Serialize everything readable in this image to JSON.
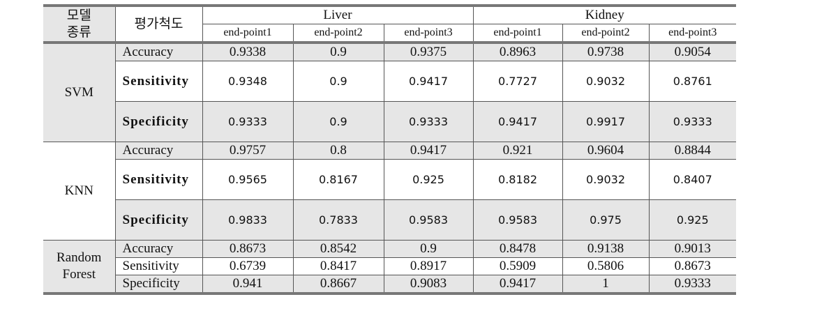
{
  "table": {
    "header": {
      "model": "모델 종류",
      "metric": "평가척도",
      "organs": [
        "Liver",
        "Kidney"
      ],
      "endpoints": [
        "end-point1",
        "end-point2",
        "end-point3",
        "end-point1",
        "end-point2",
        "end-point3"
      ]
    },
    "groups": [
      {
        "model": "SVM",
        "rows": [
          {
            "metric": "Accuracy",
            "values": [
              0.9338,
              0.9,
              0.9375,
              0.8963,
              0.9738,
              0.9054
            ]
          },
          {
            "metric": "Sensitivity",
            "values": [
              0.9348,
              0.9,
              0.9417,
              0.7727,
              0.9032,
              0.8761
            ]
          },
          {
            "metric": "Specificity",
            "values": [
              0.9333,
              0.9,
              0.9333,
              0.9417,
              0.9917,
              0.9333
            ]
          }
        ]
      },
      {
        "model": "KNN",
        "rows": [
          {
            "metric": "Accuracy",
            "values": [
              0.9757,
              0.8,
              0.9417,
              0.921,
              0.9604,
              0.8844
            ]
          },
          {
            "metric": "Sensitivity",
            "values": [
              0.9565,
              0.8167,
              0.925,
              0.8182,
              0.9032,
              0.8407
            ]
          },
          {
            "metric": "Specificity",
            "values": [
              0.9833,
              0.7833,
              0.9583,
              0.9583,
              0.975,
              0.925
            ]
          }
        ]
      },
      {
        "model": "Random Forest",
        "rows": [
          {
            "metric": "Accuracy",
            "values": [
              0.8673,
              0.8542,
              0.9,
              0.8478,
              0.9138,
              0.9013
            ]
          },
          {
            "metric": "Sensitivity",
            "values": [
              0.6739,
              0.8417,
              0.8917,
              0.5909,
              0.5806,
              0.8673
            ]
          },
          {
            "metric": "Specificity",
            "values": [
              0.941,
              0.8667,
              0.9083,
              0.9417,
              1,
              0.9333
            ]
          }
        ]
      }
    ]
  }
}
